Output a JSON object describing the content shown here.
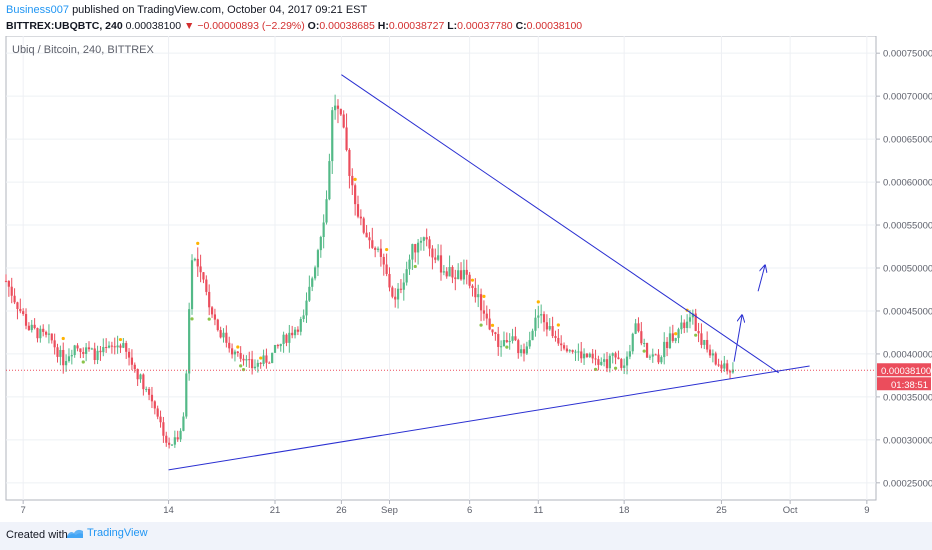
{
  "header": {
    "author": "Business007",
    "published": "published on TradingView.com, October 04, 2017 09:21 EST"
  },
  "ohlc": {
    "symbol": "BITTREX:UBQBTC, 240",
    "last": "0.00038100",
    "change": "▼ −0.00000893 (−2.29%)",
    "open_label": "O:",
    "open": "0.00038685",
    "high_label": "H:",
    "high": "0.00038727",
    "low_label": "L:",
    "low": "0.00037780",
    "close_label": "C:",
    "close": "0.00038100"
  },
  "chart_data": {
    "type": "candlestick",
    "title": "Ubiq / Bitcoin, 240, BITTREX",
    "x_tick_labels": [
      "7",
      "14",
      "21",
      "26",
      "Sep",
      "6",
      "11",
      "18",
      "25",
      "Oct",
      "9"
    ],
    "y_tick_labels": [
      "0.00075000",
      "0.00070000",
      "0.00065000",
      "0.00060000",
      "0.00055000",
      "0.00050000",
      "0.00045000",
      "0.00040000",
      "0.00035000",
      "0.00030000",
      "0.00025000"
    ],
    "ylim": [
      0.00023,
      0.00077
    ],
    "last_price": 0.000381,
    "last_price_label": "0.00038100",
    "countdown_label": "01:38:51",
    "close_path": [
      {
        "t": 0,
        "p": 0.000485
      },
      {
        "t": 2,
        "p": 0.00043
      },
      {
        "t": 4,
        "p": 0.000415
      },
      {
        "t": 5,
        "p": 0.000392
      },
      {
        "t": 6,
        "p": 0.00041
      },
      {
        "t": 8,
        "p": 0.000398
      },
      {
        "t": 10,
        "p": 0.000412
      },
      {
        "t": 12,
        "p": 0.000365
      },
      {
        "t": 13,
        "p": 0.00034
      },
      {
        "t": 14.2,
        "p": 0.00029
      },
      {
        "t": 15,
        "p": 0.000305
      },
      {
        "t": 15.6,
        "p": 0.00033
      },
      {
        "t": 16.2,
        "p": 0.00052
      },
      {
        "t": 17.5,
        "p": 0.00047
      },
      {
        "t": 18.5,
        "p": 0.00043
      },
      {
        "t": 20,
        "p": 0.0004
      },
      {
        "t": 21.5,
        "p": 0.000385
      },
      {
        "t": 23,
        "p": 0.000395
      },
      {
        "t": 24.5,
        "p": 0.00042
      },
      {
        "t": 26,
        "p": 0.00044
      },
      {
        "t": 27.2,
        "p": 0.00052
      },
      {
        "t": 28,
        "p": 0.00058
      },
      {
        "t": 28.6,
        "p": 0.0007
      },
      {
        "t": 29.4,
        "p": 0.00066
      },
      {
        "t": 30.2,
        "p": 0.0006
      },
      {
        "t": 31,
        "p": 0.00055
      },
      {
        "t": 32,
        "p": 0.00053
      },
      {
        "t": 33,
        "p": 0.0005
      },
      {
        "t": 34,
        "p": 0.00046
      },
      {
        "t": 35.5,
        "p": 0.00052
      },
      {
        "t": 36.5,
        "p": 0.00054
      },
      {
        "t": 37.5,
        "p": 0.00051
      },
      {
        "t": 38.5,
        "p": 0.000495
      },
      {
        "t": 40,
        "p": 0.00049
      },
      {
        "t": 41,
        "p": 0.00047
      },
      {
        "t": 42,
        "p": 0.00044
      },
      {
        "t": 43,
        "p": 0.00041
      },
      {
        "t": 44,
        "p": 0.00042
      },
      {
        "t": 45,
        "p": 0.0004
      },
      {
        "t": 46.5,
        "p": 0.000445
      },
      {
        "t": 48,
        "p": 0.00042
      },
      {
        "t": 49,
        "p": 0.00041
      },
      {
        "t": 50,
        "p": 0.0004
      },
      {
        "t": 51,
        "p": 0.000395
      },
      {
        "t": 52,
        "p": 0.000385
      },
      {
        "t": 53,
        "p": 0.000395
      },
      {
        "t": 54,
        "p": 0.000385
      },
      {
        "t": 55,
        "p": 0.00043
      },
      {
        "t": 56,
        "p": 0.0004
      },
      {
        "t": 57,
        "p": 0.000395
      },
      {
        "t": 58,
        "p": 0.00042
      },
      {
        "t": 59,
        "p": 0.00043
      },
      {
        "t": 60,
        "p": 0.00044
      },
      {
        "t": 61,
        "p": 0.00041
      },
      {
        "t": 62,
        "p": 0.00039
      },
      {
        "t": 63,
        "p": 0.00038
      },
      {
        "t": 63.5,
        "p": 0.000381
      }
    ],
    "annotations": [
      {
        "type": "trendline",
        "name": "upper-trendline",
        "from": {
          "t": 29.3,
          "p": 0.000725
        },
        "to": {
          "t": 67.5,
          "p": 0.000378
        }
      },
      {
        "type": "trendline",
        "name": "lower-trendline",
        "from": {
          "t": 14.2,
          "p": 0.000265
        },
        "to": {
          "t": 70.2,
          "p": 0.000386
        }
      },
      {
        "type": "arrow",
        "name": "projection-arrow-1",
        "from": {
          "t": 63.6,
          "p": 0.000391
        },
        "to": {
          "t": 64.3,
          "p": 0.000445
        }
      },
      {
        "type": "arrow",
        "name": "projection-arrow-2",
        "from": {
          "t": 65.7,
          "p": 0.000473
        },
        "to": {
          "t": 66.3,
          "p": 0.000503
        }
      }
    ]
  },
  "footer": {
    "created_with": "Created with",
    "brand": "TradingView"
  }
}
